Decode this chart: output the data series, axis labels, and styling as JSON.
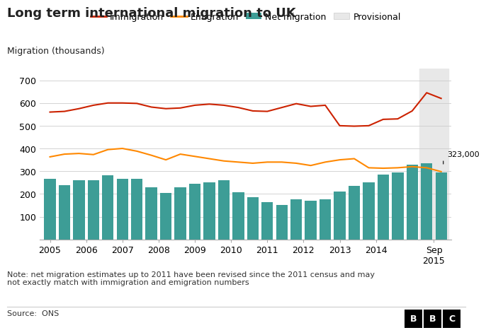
{
  "title": "Long term international migration to UK",
  "ylabel": "Migration (thousands)",
  "note": "Note: net migration estimates up to 2011 have been revised since the 2011 census and may\nnot exactly match with immigration and emigration numbers",
  "source": "Source:  ONS",
  "annotation": "323,000",
  "x_labels": [
    "2005",
    "2006",
    "2007",
    "2008",
    "2009",
    "2010",
    "2011",
    "2012",
    "2013",
    "2014",
    "Sep\n2015"
  ],
  "net_migration": [
    265,
    238,
    260,
    260,
    283,
    265,
    265,
    230,
    205,
    230,
    245,
    250,
    260,
    207,
    185,
    165,
    150,
    175,
    170,
    175,
    210,
    235,
    250,
    285,
    295,
    330,
    335,
    295
  ],
  "immigration": [
    560,
    563,
    575,
    590,
    600,
    600,
    598,
    582,
    575,
    578,
    590,
    595,
    590,
    580,
    565,
    563,
    580,
    597,
    585,
    590,
    500,
    498,
    500,
    528,
    530,
    565,
    645,
    620
  ],
  "emigration": [
    363,
    375,
    378,
    373,
    395,
    400,
    388,
    370,
    350,
    375,
    365,
    355,
    345,
    340,
    335,
    340,
    340,
    335,
    325,
    340,
    350,
    355,
    315,
    313,
    315,
    320,
    315,
    298
  ],
  "bar_color": "#3d9d96",
  "immigration_color": "#cc2200",
  "emigration_color": "#ff8800",
  "provisional_color": "#e8e8e8",
  "ylim": [
    0,
    750
  ],
  "yticks": [
    0,
    100,
    200,
    300,
    400,
    500,
    600,
    700
  ],
  "title_fontsize": 13,
  "legend_fontsize": 9,
  "axis_fontsize": 9,
  "note_fontsize": 8
}
